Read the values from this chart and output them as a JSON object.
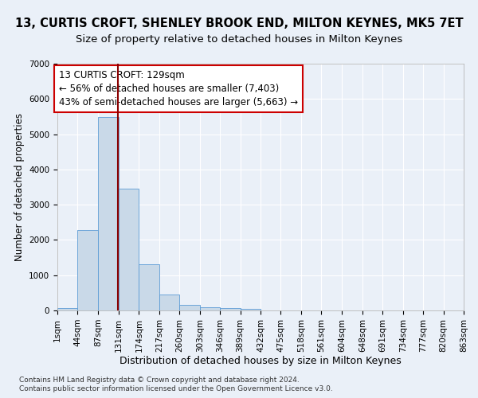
{
  "title": "13, CURTIS CROFT, SHENLEY BROOK END, MILTON KEYNES, MK5 7ET",
  "subtitle": "Size of property relative to detached houses in Milton Keynes",
  "xlabel": "Distribution of detached houses by size in Milton Keynes",
  "ylabel": "Number of detached properties",
  "footnote1": "Contains HM Land Registry data © Crown copyright and database right 2024.",
  "footnote2": "Contains public sector information licensed under the Open Government Licence v3.0.",
  "bin_edges": [
    1,
    44,
    87,
    131,
    174,
    217,
    260,
    303,
    346,
    389,
    432,
    475,
    518,
    561,
    604,
    648,
    691,
    734,
    777,
    820,
    863
  ],
  "bar_heights": [
    75,
    2280,
    5480,
    3450,
    1320,
    460,
    160,
    95,
    65,
    40,
    0,
    0,
    0,
    0,
    0,
    0,
    0,
    0,
    0,
    0
  ],
  "bar_color": "#c9d9e8",
  "bar_edgecolor": "#5b9bd5",
  "property_size": 129,
  "vline_color": "#8b0000",
  "annotation_line1": "13 CURTIS CROFT: 129sqm",
  "annotation_line2": "← 56% of detached houses are smaller (7,403)",
  "annotation_line3": "43% of semi-detached houses are larger (5,663) →",
  "annotation_box_color": "#ffffff",
  "annotation_box_edgecolor": "#cc0000",
  "ylim": [
    0,
    7000
  ],
  "yticks": [
    0,
    1000,
    2000,
    3000,
    4000,
    5000,
    6000,
    7000
  ],
  "background_color": "#eaf0f8",
  "grid_color": "#ffffff",
  "title_fontsize": 10.5,
  "subtitle_fontsize": 9.5,
  "axis_label_fontsize": 9,
  "tick_label_fontsize": 7.5,
  "annotation_fontsize": 8.5,
  "ylabel_fontsize": 8.5
}
